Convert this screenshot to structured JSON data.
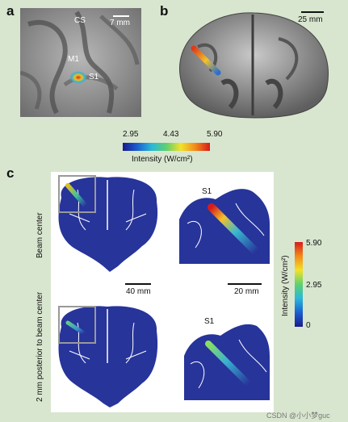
{
  "panels": {
    "a": {
      "label": "a",
      "cs_label": "CS",
      "m1_label": "M1",
      "s1_label": "S1",
      "scale_label": "7 mm"
    },
    "b": {
      "label": "b",
      "scale_label": "25 mm"
    },
    "colorbar_top": {
      "ticks": [
        "2.95",
        "4.43",
        "5.90"
      ],
      "title": "Intensity (W/cm²)"
    },
    "c": {
      "label": "c",
      "row1_label": "Beam center",
      "row2_label": "2 mm posterior to beam center",
      "s1_label_top": "S1",
      "s1_label_bottom": "S1",
      "scale_left": "40 mm",
      "scale_right": "20 mm",
      "colorbar_ticks": [
        "5.90",
        "2.95",
        "0"
      ],
      "colorbar_title": "Intensity (W/cm²)"
    }
  },
  "watermark": "CSDN @小小梦guc",
  "colors": {
    "background": "#d9e6cf",
    "slice_blue": "#27349a",
    "cortex_gray": "#8a8a8a"
  }
}
